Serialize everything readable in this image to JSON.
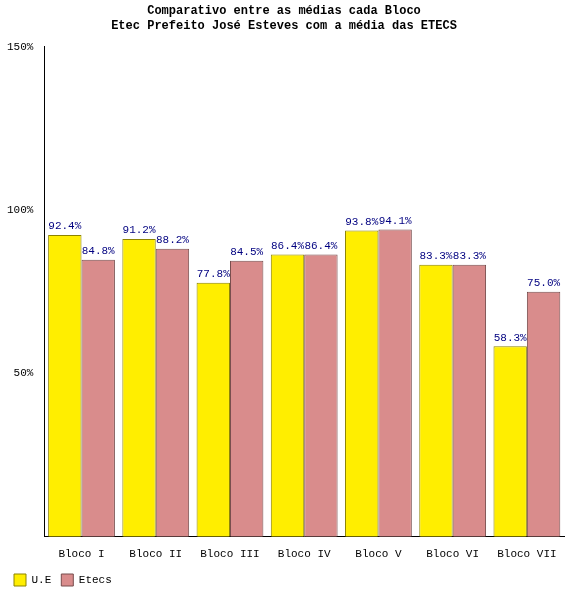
{
  "chart_data": {
    "type": "bar",
    "title": [
      "Comparativo entre as médias cada Bloco",
      "Etec Prefeito José Esteves com a média das ETECS"
    ],
    "categories": [
      "Bloco I",
      "Bloco II",
      "Bloco III",
      "Bloco IV",
      "Bloco V",
      "Bloco VI",
      "Bloco VII"
    ],
    "series": [
      {
        "name": "U.E",
        "color": "#ffee00",
        "values": [
          92.4,
          91.2,
          77.8,
          86.4,
          93.8,
          83.3,
          58.3
        ],
        "value_labels": [
          "92.4%",
          "91.2%",
          "77.8%",
          "86.4%",
          "93.8%",
          "83.3%",
          "58.3%"
        ]
      },
      {
        "name": "Etecs",
        "color": "#d98c8c",
        "values": [
          84.8,
          88.2,
          84.5,
          86.4,
          94.1,
          83.3,
          75.0
        ],
        "value_labels": [
          "84.8%",
          "88.2%",
          "84.5%",
          "86.4%",
          "94.1%",
          "83.3%",
          "75.0%"
        ]
      }
    ],
    "ylim": [
      0,
      150
    ],
    "yticks": [
      {
        "value": 50,
        "label": "50%"
      },
      {
        "value": 100,
        "label": "100%"
      },
      {
        "value": 150,
        "label": "150%"
      }
    ],
    "grid": false,
    "legend": "bottom-left",
    "data_labels": true
  }
}
